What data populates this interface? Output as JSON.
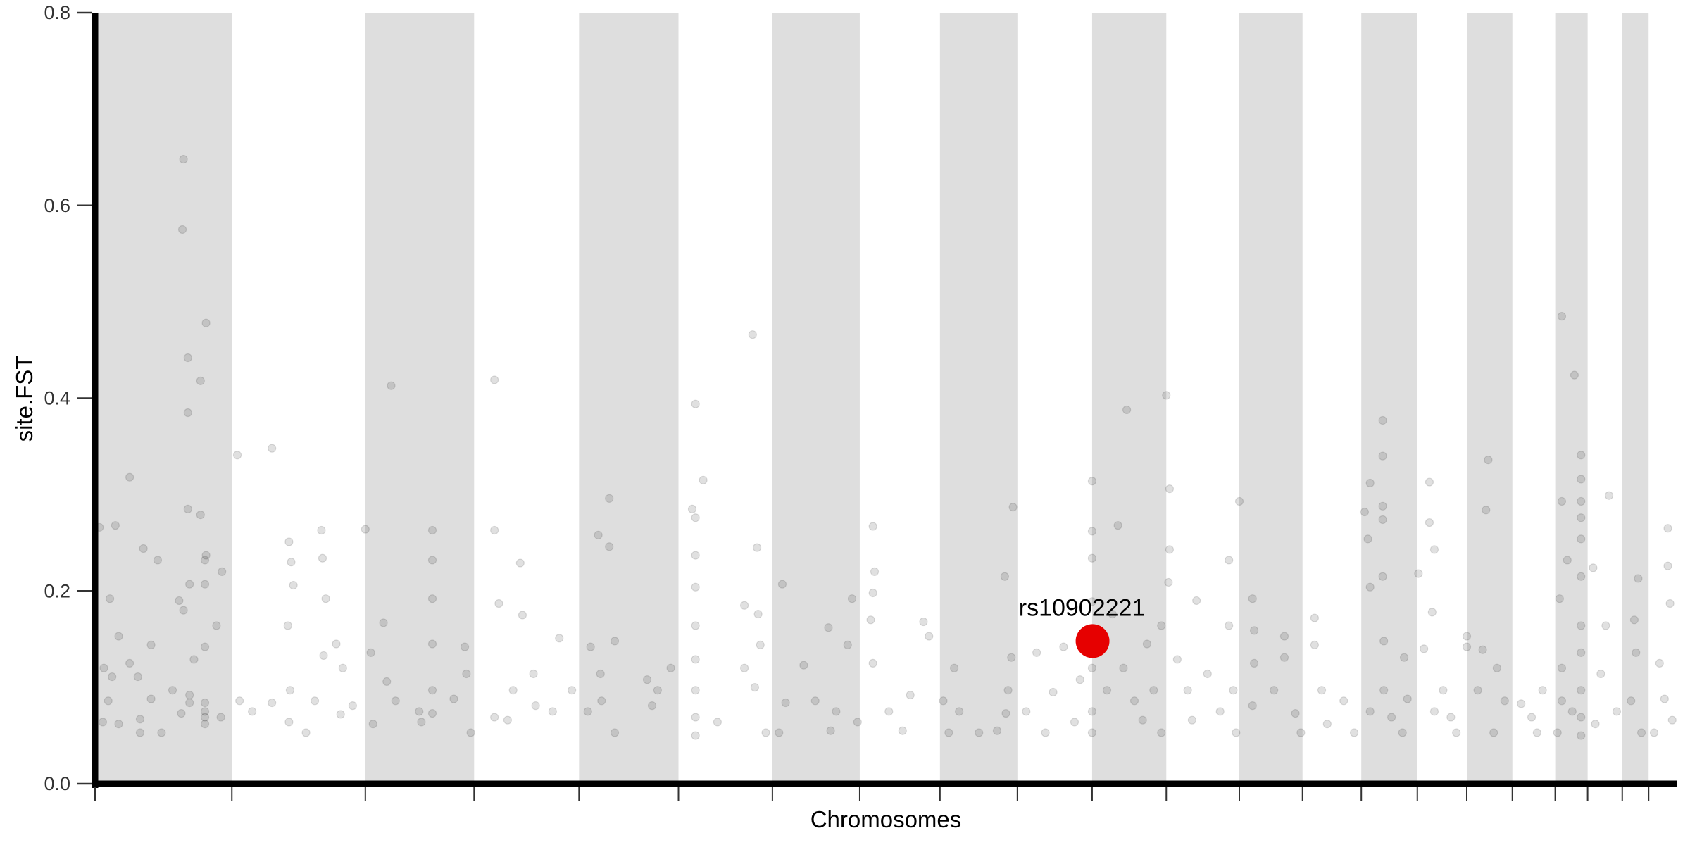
{
  "chart_data": {
    "type": "scatter",
    "subtype": "manhattan",
    "title": "",
    "xlabel": "Chromosomes",
    "ylabel": "site.FST",
    "ylim": [
      0,
      0.8
    ],
    "yticks": [
      "0.0",
      "0.2",
      "0.4",
      "0.6",
      "0.8"
    ],
    "ytick_values": [
      0,
      0.2,
      0.4,
      0.6,
      0.8
    ],
    "x_tick_labels_shown": false,
    "grid": false,
    "legend": "none",
    "band_color": "#dedede",
    "point_color": "#000000",
    "point_opacity": 0.12,
    "highlight_color": "#e60000",
    "chromosomes": [
      {
        "chr": 1,
        "length_mb": 249
      },
      {
        "chr": 2,
        "length_mb": 243
      },
      {
        "chr": 3,
        "length_mb": 198
      },
      {
        "chr": 4,
        "length_mb": 191
      },
      {
        "chr": 5,
        "length_mb": 181
      },
      {
        "chr": 6,
        "length_mb": 171
      },
      {
        "chr": 7,
        "length_mb": 159
      },
      {
        "chr": 8,
        "length_mb": 146
      },
      {
        "chr": 9,
        "length_mb": 141
      },
      {
        "chr": 10,
        "length_mb": 136
      },
      {
        "chr": 11,
        "length_mb": 135
      },
      {
        "chr": 12,
        "length_mb": 133
      },
      {
        "chr": 13,
        "length_mb": 115
      },
      {
        "chr": 14,
        "length_mb": 107
      },
      {
        "chr": 15,
        "length_mb": 102
      },
      {
        "chr": 16,
        "length_mb": 90
      },
      {
        "chr": 17,
        "length_mb": 83
      },
      {
        "chr": 18,
        "length_mb": 78
      },
      {
        "chr": 19,
        "length_mb": 59
      },
      {
        "chr": 20,
        "length_mb": 63
      },
      {
        "chr": 21,
        "length_mb": 48
      },
      {
        "chr": 22,
        "length_mb": 51
      }
    ],
    "point_fields": [
      "chr",
      "pos_mb",
      "fst"
    ],
    "points": [
      [
        1,
        161,
        0.648
      ],
      [
        1,
        159,
        0.575
      ],
      [
        1,
        202,
        0.478
      ],
      [
        1,
        169,
        0.442
      ],
      [
        1,
        192,
        0.418
      ],
      [
        1,
        169,
        0.385
      ],
      [
        1,
        169,
        0.285
      ],
      [
        1,
        192,
        0.279
      ],
      [
        1,
        63,
        0.318
      ],
      [
        1,
        37,
        0.268
      ],
      [
        1,
        8,
        0.266
      ],
      [
        1,
        200,
        0.232
      ],
      [
        1,
        202,
        0.237
      ],
      [
        1,
        231,
        0.22
      ],
      [
        1,
        88,
        0.244
      ],
      [
        1,
        114,
        0.232
      ],
      [
        1,
        27,
        0.192
      ],
      [
        1,
        153,
        0.19
      ],
      [
        1,
        172,
        0.207
      ],
      [
        1,
        200,
        0.207
      ],
      [
        1,
        161,
        0.18
      ],
      [
        1,
        221,
        0.164
      ],
      [
        1,
        200,
        0.142
      ],
      [
        1,
        102,
        0.144
      ],
      [
        1,
        43,
        0.153
      ],
      [
        1,
        63,
        0.125
      ],
      [
        1,
        180,
        0.129
      ],
      [
        1,
        16,
        0.12
      ],
      [
        1,
        31,
        0.111
      ],
      [
        1,
        78,
        0.111
      ],
      [
        1,
        141,
        0.097
      ],
      [
        1,
        102,
        0.088
      ],
      [
        1,
        172,
        0.092
      ],
      [
        1,
        200,
        0.084
      ],
      [
        1,
        200,
        0.069
      ],
      [
        1,
        200,
        0.062
      ],
      [
        1,
        200,
        0.075
      ],
      [
        1,
        24,
        0.086
      ],
      [
        1,
        43,
        0.062
      ],
      [
        1,
        82,
        0.067
      ],
      [
        1,
        82,
        0.053
      ],
      [
        1,
        121,
        0.053
      ],
      [
        1,
        14,
        0.064
      ],
      [
        1,
        157,
        0.073
      ],
      [
        1,
        172,
        0.084
      ],
      [
        1,
        229,
        0.069
      ],
      [
        2,
        10,
        0.341
      ],
      [
        2,
        73,
        0.348
      ],
      [
        2,
        37,
        0.075
      ],
      [
        2,
        14,
        0.086
      ],
      [
        2,
        73,
        0.084
      ],
      [
        2,
        104,
        0.251
      ],
      [
        2,
        104,
        0.064
      ],
      [
        2,
        108,
        0.23
      ],
      [
        2,
        112,
        0.206
      ],
      [
        2,
        102,
        0.164
      ],
      [
        2,
        106,
        0.097
      ],
      [
        2,
        163,
        0.263
      ],
      [
        2,
        165,
        0.234
      ],
      [
        2,
        171,
        0.192
      ],
      [
        2,
        167,
        0.133
      ],
      [
        2,
        190,
        0.145
      ],
      [
        2,
        202,
        0.12
      ],
      [
        2,
        220,
        0.081
      ],
      [
        2,
        135,
        0.053
      ],
      [
        2,
        198,
        0.072
      ],
      [
        2,
        151,
        0.086
      ],
      [
        3,
        0,
        0.264
      ],
      [
        3,
        33,
        0.167
      ],
      [
        3,
        47,
        0.413
      ],
      [
        3,
        10,
        0.136
      ],
      [
        3,
        39,
        0.106
      ],
      [
        3,
        14,
        0.062
      ],
      [
        3,
        55,
        0.086
      ],
      [
        3,
        102,
        0.064
      ],
      [
        3,
        122,
        0.263
      ],
      [
        3,
        122,
        0.232
      ],
      [
        3,
        122,
        0.192
      ],
      [
        3,
        122,
        0.145
      ],
      [
        3,
        122,
        0.097
      ],
      [
        3,
        122,
        0.073
      ],
      [
        3,
        98,
        0.075
      ],
      [
        3,
        181,
        0.142
      ],
      [
        3,
        184,
        0.114
      ],
      [
        3,
        161,
        0.088
      ],
      [
        3,
        192,
        0.053
      ],
      [
        4,
        37,
        0.419
      ],
      [
        4,
        37,
        0.263
      ],
      [
        4,
        45,
        0.187
      ],
      [
        4,
        37,
        0.069
      ],
      [
        4,
        84,
        0.229
      ],
      [
        4,
        88,
        0.175
      ],
      [
        4,
        108,
        0.114
      ],
      [
        4,
        71,
        0.097
      ],
      [
        4,
        112,
        0.081
      ],
      [
        4,
        155,
        0.151
      ],
      [
        4,
        143,
        0.075
      ],
      [
        4,
        178,
        0.097
      ],
      [
        4,
        61,
        0.066
      ],
      [
        5,
        55,
        0.296
      ],
      [
        5,
        35,
        0.258
      ],
      [
        5,
        55,
        0.246
      ],
      [
        5,
        21,
        0.142
      ],
      [
        5,
        65,
        0.148
      ],
      [
        5,
        39,
        0.114
      ],
      [
        5,
        41,
        0.086
      ],
      [
        5,
        65,
        0.053
      ],
      [
        5,
        16,
        0.075
      ],
      [
        5,
        124,
        0.108
      ],
      [
        5,
        143,
        0.097
      ],
      [
        5,
        167,
        0.12
      ],
      [
        5,
        133,
        0.081
      ],
      [
        6,
        31,
        0.394
      ],
      [
        6,
        45,
        0.315
      ],
      [
        6,
        25,
        0.285
      ],
      [
        6,
        31,
        0.276
      ],
      [
        6,
        31,
        0.237
      ],
      [
        6,
        31,
        0.204
      ],
      [
        6,
        31,
        0.164
      ],
      [
        6,
        31,
        0.129
      ],
      [
        6,
        31,
        0.097
      ],
      [
        6,
        31,
        0.069
      ],
      [
        6,
        31,
        0.05
      ],
      [
        6,
        71,
        0.064
      ],
      [
        6,
        120,
        0.12
      ],
      [
        6,
        120,
        0.185
      ],
      [
        6,
        135,
        0.466
      ],
      [
        6,
        143,
        0.245
      ],
      [
        6,
        145,
        0.176
      ],
      [
        6,
        149,
        0.144
      ],
      [
        6,
        139,
        0.1
      ],
      [
        6,
        159,
        0.053
      ],
      [
        7,
        18,
        0.207
      ],
      [
        7,
        24,
        0.084
      ],
      [
        7,
        12,
        0.053
      ],
      [
        7,
        57,
        0.123
      ],
      [
        7,
        78,
        0.086
      ],
      [
        7,
        102,
        0.162
      ],
      [
        7,
        116,
        0.075
      ],
      [
        7,
        137,
        0.144
      ],
      [
        7,
        145,
        0.192
      ],
      [
        7,
        155,
        0.064
      ],
      [
        7,
        106,
        0.055
      ],
      [
        8,
        24,
        0.267
      ],
      [
        8,
        24,
        0.198
      ],
      [
        8,
        27,
        0.22
      ],
      [
        8,
        20,
        0.17
      ],
      [
        8,
        24,
        0.125
      ],
      [
        8,
        53,
        0.075
      ],
      [
        8,
        78,
        0.055
      ],
      [
        8,
        116,
        0.168
      ],
      [
        8,
        126,
        0.153
      ],
      [
        8,
        92,
        0.092
      ],
      [
        9,
        6,
        0.086
      ],
      [
        9,
        16,
        0.053
      ],
      [
        9,
        26,
        0.12
      ],
      [
        9,
        35,
        0.075
      ],
      [
        9,
        71,
        0.053
      ],
      [
        9,
        124,
        0.097
      ],
      [
        9,
        120,
        0.073
      ],
      [
        9,
        133,
        0.287
      ],
      [
        9,
        118,
        0.215
      ],
      [
        9,
        130,
        0.131
      ],
      [
        9,
        104,
        0.055
      ],
      [
        10,
        16,
        0.075
      ],
      [
        10,
        35,
        0.136
      ],
      [
        10,
        65,
        0.095
      ],
      [
        10,
        84,
        0.142
      ],
      [
        10,
        114,
        0.108
      ],
      [
        10,
        104,
        0.064
      ],
      [
        10,
        51,
        0.053
      ],
      [
        11,
        0,
        0.314
      ],
      [
        11,
        0,
        0.262
      ],
      [
        11,
        0,
        0.234
      ],
      [
        11,
        0,
        0.189
      ],
      [
        11,
        0,
        0.12
      ],
      [
        11,
        0,
        0.075
      ],
      [
        11,
        0,
        0.053
      ],
      [
        11,
        63,
        0.388
      ],
      [
        11,
        47,
        0.268
      ],
      [
        11,
        37,
        0.176
      ],
      [
        11,
        57,
        0.12
      ],
      [
        11,
        77,
        0.086
      ],
      [
        11,
        100,
        0.145
      ],
      [
        11,
        112,
        0.097
      ],
      [
        11,
        126,
        0.164
      ],
      [
        11,
        126,
        0.053
      ],
      [
        11,
        92,
        0.066
      ],
      [
        11,
        27,
        0.097
      ],
      [
        12,
        0,
        0.403
      ],
      [
        12,
        6,
        0.306
      ],
      [
        12,
        6,
        0.243
      ],
      [
        12,
        4,
        0.209
      ],
      [
        12,
        20,
        0.129
      ],
      [
        12,
        39,
        0.097
      ],
      [
        12,
        55,
        0.19
      ],
      [
        12,
        75,
        0.114
      ],
      [
        12,
        98,
        0.075
      ],
      [
        12,
        114,
        0.232
      ],
      [
        12,
        114,
        0.164
      ],
      [
        12,
        122,
        0.097
      ],
      [
        12,
        47,
        0.066
      ],
      [
        12,
        127,
        0.053
      ],
      [
        13,
        0,
        0.293
      ],
      [
        13,
        24,
        0.192
      ],
      [
        13,
        27,
        0.159
      ],
      [
        13,
        27,
        0.125
      ],
      [
        13,
        24,
        0.081
      ],
      [
        13,
        82,
        0.153
      ],
      [
        13,
        82,
        0.131
      ],
      [
        13,
        63,
        0.097
      ],
      [
        13,
        102,
        0.073
      ],
      [
        13,
        112,
        0.053
      ],
      [
        14,
        22,
        0.172
      ],
      [
        14,
        22,
        0.144
      ],
      [
        14,
        35,
        0.097
      ],
      [
        14,
        75,
        0.086
      ],
      [
        14,
        94,
        0.053
      ],
      [
        14,
        45,
        0.062
      ],
      [
        15,
        16,
        0.312
      ],
      [
        15,
        6,
        0.282
      ],
      [
        15,
        12,
        0.254
      ],
      [
        15,
        16,
        0.204
      ],
      [
        15,
        39,
        0.377
      ],
      [
        15,
        39,
        0.34
      ],
      [
        15,
        39,
        0.288
      ],
      [
        15,
        39,
        0.274
      ],
      [
        15,
        39,
        0.215
      ],
      [
        15,
        41,
        0.148
      ],
      [
        15,
        41,
        0.097
      ],
      [
        15,
        55,
        0.069
      ],
      [
        15,
        78,
        0.131
      ],
      [
        15,
        84,
        0.088
      ],
      [
        15,
        75,
        0.053
      ],
      [
        15,
        16,
        0.075
      ],
      [
        16,
        2,
        0.218
      ],
      [
        16,
        22,
        0.313
      ],
      [
        16,
        22,
        0.271
      ],
      [
        16,
        31,
        0.243
      ],
      [
        16,
        27,
        0.178
      ],
      [
        16,
        12,
        0.14
      ],
      [
        16,
        47,
        0.097
      ],
      [
        16,
        61,
        0.069
      ],
      [
        16,
        71,
        0.053
      ],
      [
        16,
        31,
        0.075
      ],
      [
        17,
        0,
        0.153
      ],
      [
        17,
        0,
        0.142
      ],
      [
        17,
        39,
        0.336
      ],
      [
        17,
        35,
        0.284
      ],
      [
        17,
        29,
        0.139
      ],
      [
        17,
        20,
        0.097
      ],
      [
        17,
        55,
        0.12
      ],
      [
        17,
        69,
        0.086
      ],
      [
        17,
        49,
        0.053
      ],
      [
        18,
        16,
        0.083
      ],
      [
        18,
        45,
        0.053
      ],
      [
        18,
        55,
        0.097
      ],
      [
        18,
        35,
        0.069
      ],
      [
        19,
        12,
        0.485
      ],
      [
        19,
        12,
        0.293
      ],
      [
        19,
        22,
        0.232
      ],
      [
        19,
        8,
        0.192
      ],
      [
        19,
        35,
        0.424
      ],
      [
        19,
        47,
        0.341
      ],
      [
        19,
        47,
        0.316
      ],
      [
        19,
        47,
        0.293
      ],
      [
        19,
        47,
        0.276
      ],
      [
        19,
        47,
        0.254
      ],
      [
        19,
        47,
        0.215
      ],
      [
        19,
        47,
        0.164
      ],
      [
        19,
        47,
        0.136
      ],
      [
        19,
        47,
        0.097
      ],
      [
        19,
        47,
        0.069
      ],
      [
        19,
        47,
        0.05
      ],
      [
        19,
        12,
        0.12
      ],
      [
        19,
        12,
        0.086
      ],
      [
        19,
        4,
        0.053
      ],
      [
        19,
        31,
        0.075
      ],
      [
        20,
        10,
        0.224
      ],
      [
        20,
        39,
        0.299
      ],
      [
        20,
        33,
        0.164
      ],
      [
        20,
        24,
        0.114
      ],
      [
        20,
        53,
        0.075
      ],
      [
        20,
        14,
        0.062
      ],
      [
        21,
        29,
        0.213
      ],
      [
        21,
        22,
        0.17
      ],
      [
        21,
        25,
        0.136
      ],
      [
        21,
        16,
        0.086
      ],
      [
        21,
        35,
        0.053
      ],
      [
        22,
        35,
        0.265
      ],
      [
        22,
        35,
        0.226
      ],
      [
        22,
        39,
        0.187
      ],
      [
        22,
        20,
        0.125
      ],
      [
        22,
        29,
        0.088
      ],
      [
        22,
        43,
        0.066
      ],
      [
        22,
        10,
        0.053
      ]
    ],
    "highlight": {
      "label": "rs10902221",
      "chr": 11,
      "pos_mb": 0.8,
      "fst": 0.148
    }
  }
}
